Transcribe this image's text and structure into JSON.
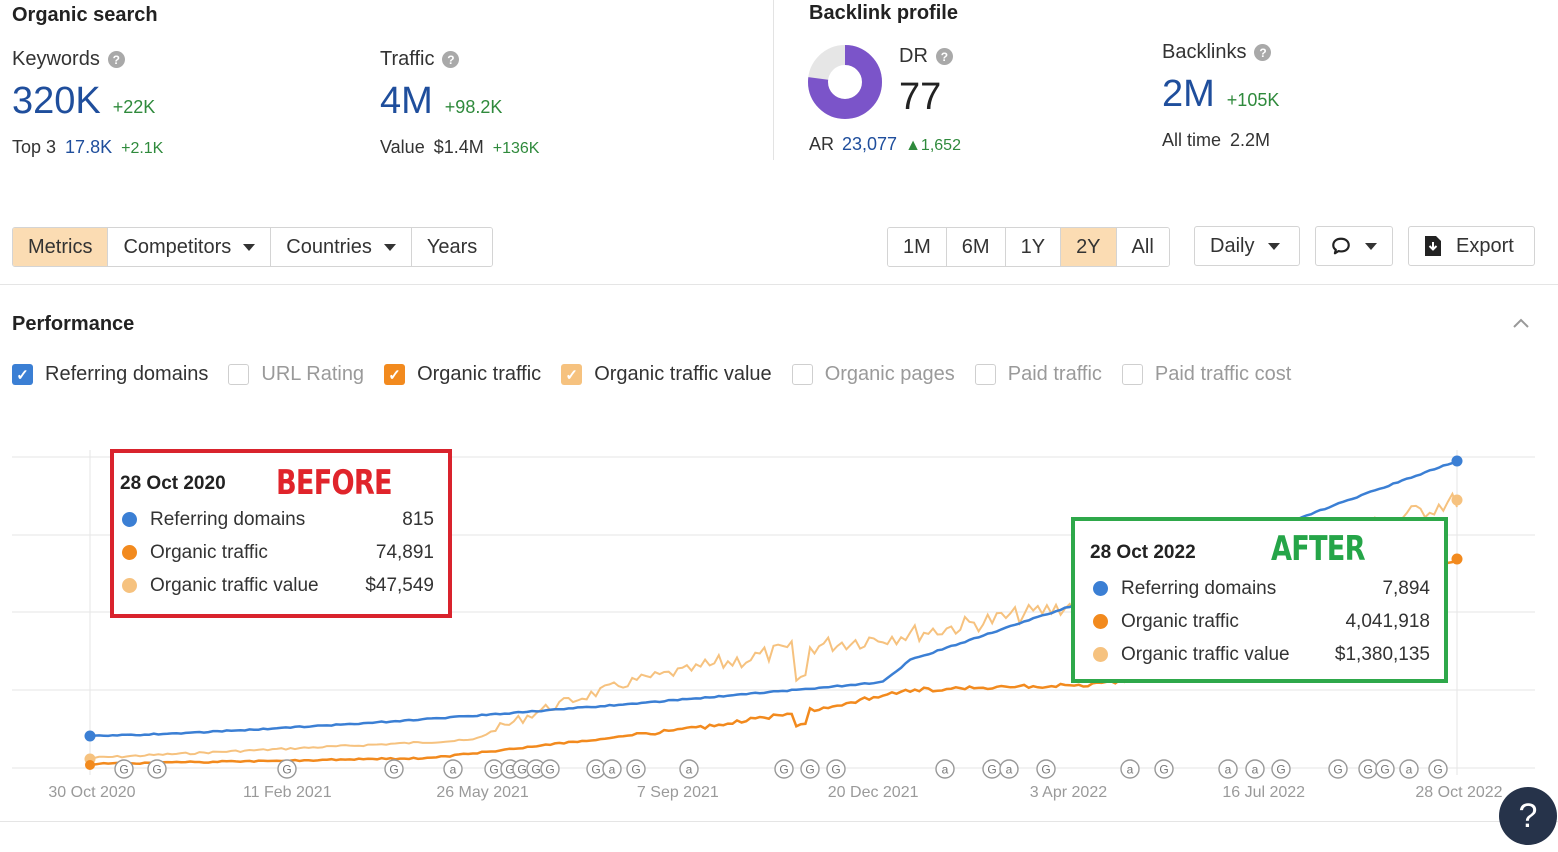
{
  "organic": {
    "title": "Organic search",
    "keywords": {
      "label": "Keywords",
      "value": "320K",
      "delta": "+22K",
      "sub_label": "Top 3",
      "sub_value": "17.8K",
      "sub_delta": "+2.1K"
    },
    "traffic": {
      "label": "Traffic",
      "value": "4M",
      "delta": "+98.2K",
      "sub_label": "Value",
      "sub_value": "$1.4M",
      "sub_delta": "+136K"
    }
  },
  "backlink": {
    "title": "Backlink profile",
    "dr": {
      "label": "DR",
      "value": "77",
      "ar_label": "AR",
      "ar_value": "23,077",
      "ar_delta": "1,652",
      "fraction": 0.77
    },
    "backlinks": {
      "label": "Backlinks",
      "value": "2M",
      "delta": "+105K",
      "sub_label": "All time",
      "sub_value": "2.2M"
    }
  },
  "toolbar": {
    "tabs": [
      "Metrics",
      "Competitors",
      "Countries",
      "Years"
    ],
    "active_tab": "Metrics",
    "ranges": [
      "1M",
      "6M",
      "1Y",
      "2Y",
      "All"
    ],
    "active_range": "2Y",
    "granularity": "Daily",
    "export": "Export"
  },
  "performance": {
    "title": "Performance",
    "metrics": [
      {
        "label": "Referring domains",
        "checked": true,
        "color": "#3b7fd4"
      },
      {
        "label": "URL Rating",
        "checked": false
      },
      {
        "label": "Organic traffic",
        "checked": true,
        "color": "#f28a1e"
      },
      {
        "label": "Organic traffic value",
        "checked": true,
        "color": "#f6c27f"
      },
      {
        "label": "Organic pages",
        "checked": false
      },
      {
        "label": "Paid traffic",
        "checked": false
      },
      {
        "label": "Paid traffic cost",
        "checked": false
      }
    ]
  },
  "chart_data": {
    "type": "line",
    "x_ticks": [
      "30 Oct 2020",
      "11 Feb 2021",
      "26 May 2021",
      "7 Sep 2021",
      "20 Dec 2021",
      "3 Apr 2022",
      "16 Jul 2022",
      "28 Oct 2022"
    ],
    "grid": true,
    "series": [
      {
        "name": "Referring domains",
        "color": "#3b7fd4",
        "start": 815,
        "end": 7894
      },
      {
        "name": "Organic traffic",
        "color": "#f28a1e",
        "start": 74891,
        "end": 4041918
      },
      {
        "name": "Organic traffic value",
        "color": "#f6c27f",
        "start": 47549,
        "end": 1380135
      }
    ],
    "markers": [
      "G",
      "G",
      "G",
      "G",
      "a",
      "G",
      "G",
      "G",
      "G",
      "G",
      "G",
      "a",
      "G",
      "a",
      "G",
      "G",
      "G",
      "a",
      "G",
      "a",
      "G",
      "a",
      "G",
      "a",
      "a",
      "G",
      "G",
      "G",
      "G",
      "a",
      "G"
    ]
  },
  "tooltip_before": {
    "tag": "BEFORE",
    "date": "28 Oct 2020",
    "rows": [
      {
        "name": "Referring domains",
        "value": "815",
        "color": "#3b7fd4"
      },
      {
        "name": "Organic traffic",
        "value": "74,891",
        "color": "#f28a1e"
      },
      {
        "name": "Organic traffic value",
        "value": "$47,549",
        "color": "#f6c27f"
      }
    ]
  },
  "tooltip_after": {
    "tag": "AFTER",
    "date": "28 Oct 2022",
    "rows": [
      {
        "name": "Referring domains",
        "value": "7,894",
        "color": "#3b7fd4"
      },
      {
        "name": "Organic traffic",
        "value": "4,041,918",
        "color": "#f28a1e"
      },
      {
        "name": "Organic traffic value",
        "value": "$1,380,135",
        "color": "#f6c27f"
      }
    ]
  },
  "help_button": "?"
}
